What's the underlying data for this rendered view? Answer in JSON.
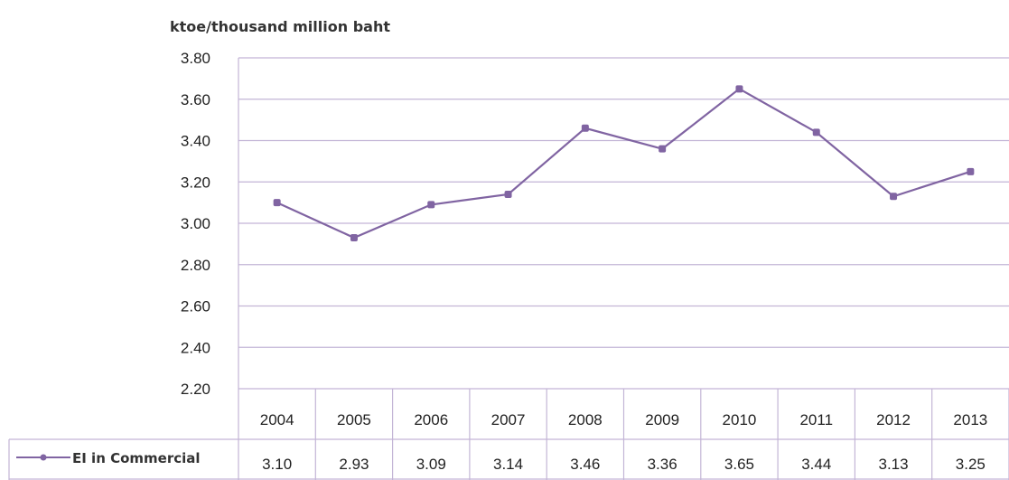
{
  "chart_data": {
    "type": "line",
    "ylabel": "ktoe/thousand million baht",
    "categories": [
      "2004",
      "2005",
      "2006",
      "2007",
      "2008",
      "2009",
      "2010",
      "2011",
      "2012",
      "2013"
    ],
    "yticks": [
      "3.80",
      "3.60",
      "3.40",
      "3.20",
      "3.00",
      "2.80",
      "2.60",
      "2.40",
      "2.20"
    ],
    "ylim": [
      2.2,
      3.8
    ],
    "grid": true,
    "series": [
      {
        "name": "EI in Commercial",
        "values": [
          3.1,
          2.93,
          3.09,
          3.14,
          3.46,
          3.36,
          3.65,
          3.44,
          3.13,
          3.25
        ],
        "labels": [
          "3.10",
          "2.93",
          "3.09",
          "3.14",
          "3.46",
          "3.36",
          "3.65",
          "3.44",
          "3.13",
          "3.25"
        ],
        "color": "#8064a2"
      }
    ],
    "legend": "data-table",
    "grid_color": "#c3b5d6"
  }
}
